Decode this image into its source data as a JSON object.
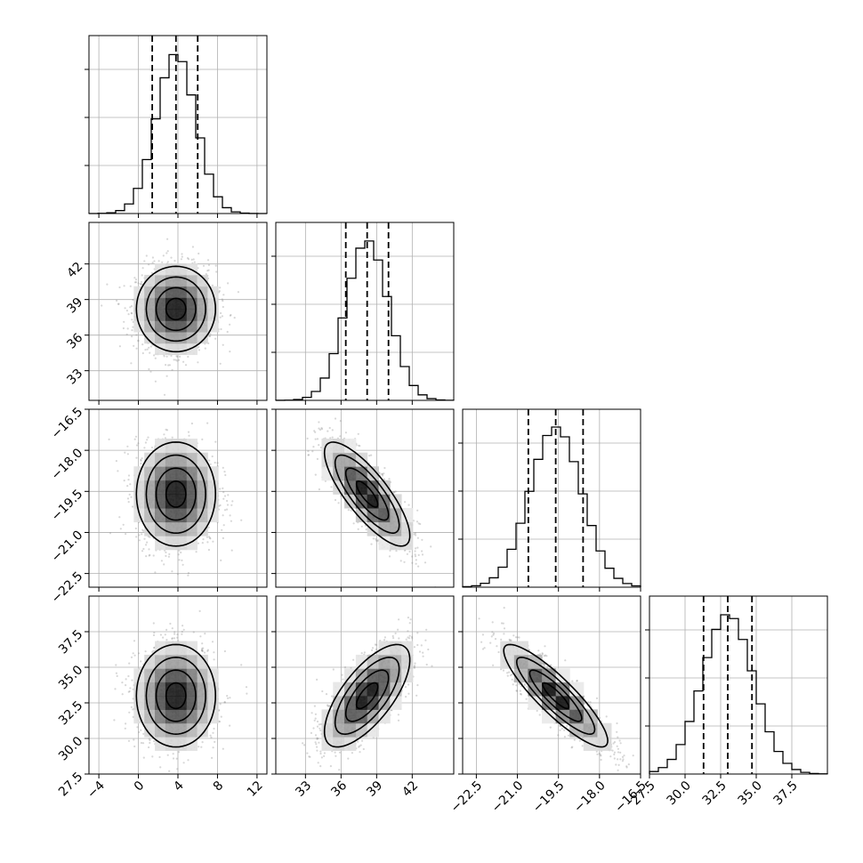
{
  "chart_data": {
    "type": "corner",
    "parameters": [
      {
        "index": 0,
        "mean": 3.8,
        "std": 2.0,
        "range": [
          -5,
          13
        ],
        "ticks": [
          -4,
          0,
          4,
          8,
          12
        ],
        "tick_labels": [
          "−4",
          "0",
          "4",
          "8",
          "12"
        ],
        "quantiles": [
          1.4,
          3.8,
          6.0
        ]
      },
      {
        "index": 1,
        "mean": 38.2,
        "std": 1.8,
        "range": [
          30.5,
          45.5
        ],
        "ticks": [
          33,
          36,
          39,
          42
        ],
        "tick_labels": [
          "33",
          "36",
          "39",
          "42"
        ],
        "quantiles": [
          36.4,
          38.2,
          40.0
        ]
      },
      {
        "index": 2,
        "mean": -19.6,
        "std": 0.95,
        "range": [
          -23.0,
          -16.5
        ],
        "ticks": [
          -22.5,
          -21.0,
          -19.5,
          -18.0,
          -16.5
        ],
        "tick_labels": [
          "−22.5",
          "−21.0",
          "−19.5",
          "−18.0",
          "−16.5"
        ],
        "quantiles": [
          -20.6,
          -19.6,
          -18.6
        ]
      },
      {
        "index": 3,
        "mean": 33.0,
        "std": 1.8,
        "range": [
          27.5,
          40.0
        ],
        "ticks": [
          27.5,
          30.0,
          32.5,
          35.0,
          37.5
        ],
        "tick_labels": [
          "27.5",
          "30.0",
          "32.5",
          "35.0",
          "37.5"
        ],
        "quantiles": [
          31.3,
          33.0,
          34.7
        ]
      }
    ],
    "correlations": [
      [
        1.0,
        0.0,
        0.0,
        0.0
      ],
      [
        0.0,
        1.0,
        -0.8,
        0.7
      ],
      [
        0.0,
        -0.8,
        1.0,
        -0.88
      ],
      [
        0.0,
        0.7,
        -0.88,
        1.0
      ]
    ],
    "histogram_bins": 20,
    "quantile_levels": [
      0.16,
      0.5,
      0.84
    ],
    "contour_levels_sigma": [
      0.5,
      1.0,
      1.5,
      2.0
    ],
    "grid": true,
    "xlabel": "",
    "ylabel": "",
    "title": ""
  }
}
